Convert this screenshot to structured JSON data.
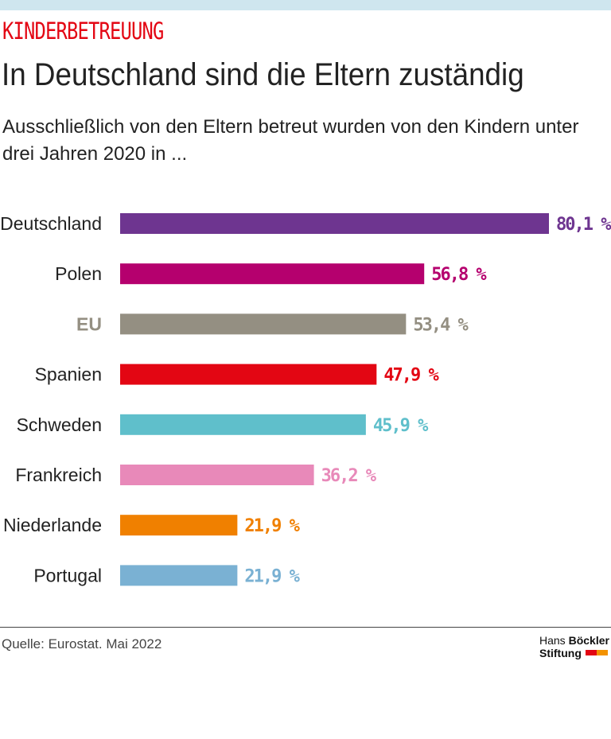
{
  "kicker": "KINDERBETREUUNG",
  "title": "In Deutschland sind die Eltern zuständig",
  "subtitle": "Ausschließlich von den Eltern betreut wurden von den Kindern unter drei Jahren 2020 in ...",
  "source": "Quelle: Eurostat. Mai 2022",
  "logo": {
    "line1_a": "Hans ",
    "line1_b": "Böckler",
    "line2": "Stiftung",
    "colors": [
      "#e30613",
      "#f39200"
    ]
  },
  "chart_data": {
    "type": "bar",
    "orientation": "horizontal",
    "categories": [
      "Deutschland",
      "Polen",
      "EU",
      "Spanien",
      "Schweden",
      "Frankreich",
      "Niederlande",
      "Portugal"
    ],
    "values": [
      80.1,
      56.8,
      53.4,
      47.9,
      45.9,
      36.2,
      21.9,
      21.9
    ],
    "value_labels": [
      "80,1 %",
      "56,8 %",
      "53,4 %",
      "47,9 %",
      "45,9 %",
      "36,2 %",
      "21,9 %",
      "21,9 %"
    ],
    "colors": [
      "#6e3590",
      "#b5006e",
      "#948f82",
      "#e30613",
      "#5fbfcb",
      "#e889b9",
      "#f08000",
      "#7ab1d3"
    ],
    "xlim": [
      0,
      80.1
    ],
    "grid": false,
    "unit": "%"
  }
}
